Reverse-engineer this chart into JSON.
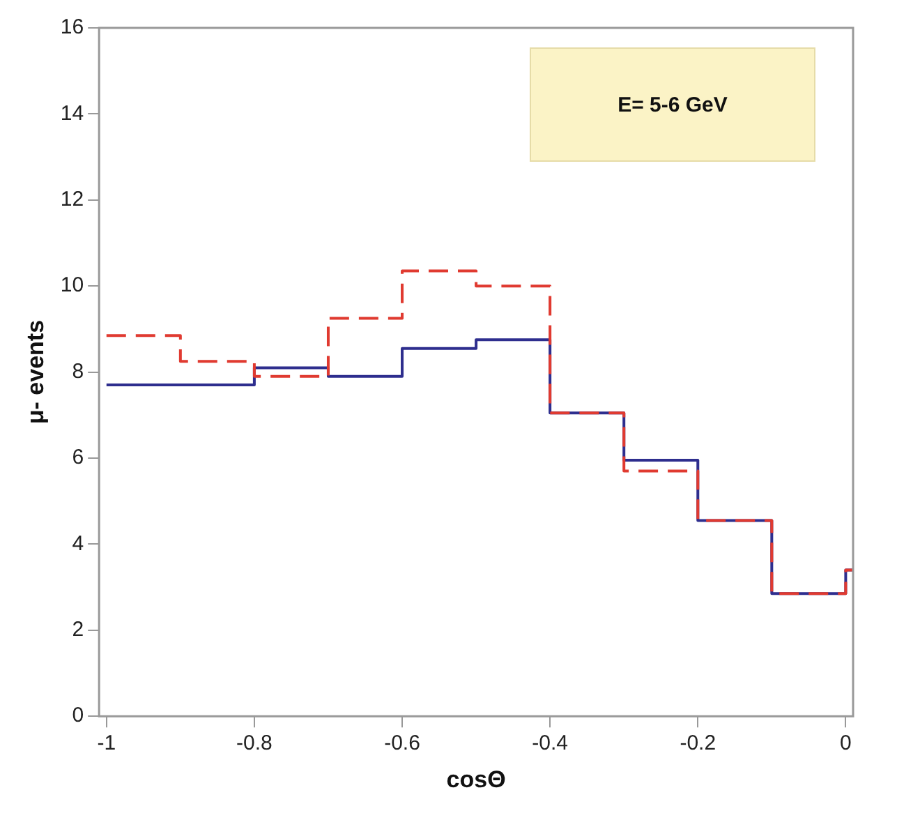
{
  "chart_data": {
    "type": "histogram",
    "xlabel": "cosΘ",
    "ylabel": "μ- events",
    "annotations": [
      "E= 5-6 GeV"
    ],
    "bins": [
      -1,
      -0.9,
      -0.8,
      -0.7,
      -0.6,
      -0.5,
      -0.4,
      -0.3,
      -0.2,
      -0.1,
      0,
      0.01
    ],
    "series": [
      {
        "color": "#e03a30",
        "line_style": "dashed",
        "values": [
          8.85,
          8.25,
          7.9,
          9.25,
          10.35,
          10.0,
          7.05,
          5.7,
          4.55,
          2.85,
          3.4
        ]
      },
      {
        "color": "#2e2e8e",
        "line_style": "solid",
        "values": [
          7.7,
          7.7,
          8.1,
          7.9,
          8.55,
          8.75,
          7.05,
          5.95,
          4.55,
          2.85,
          3.4
        ]
      }
    ],
    "xlim": [
      -1.01,
      0.01
    ],
    "xticks": [
      -1,
      -0.8,
      -0.6,
      -0.4,
      -0.2,
      0
    ],
    "ylim": [
      0,
      16
    ],
    "yticks": [
      0,
      2,
      4,
      6,
      8,
      10,
      12,
      14,
      16
    ],
    "grid": false,
    "legend": false
  }
}
